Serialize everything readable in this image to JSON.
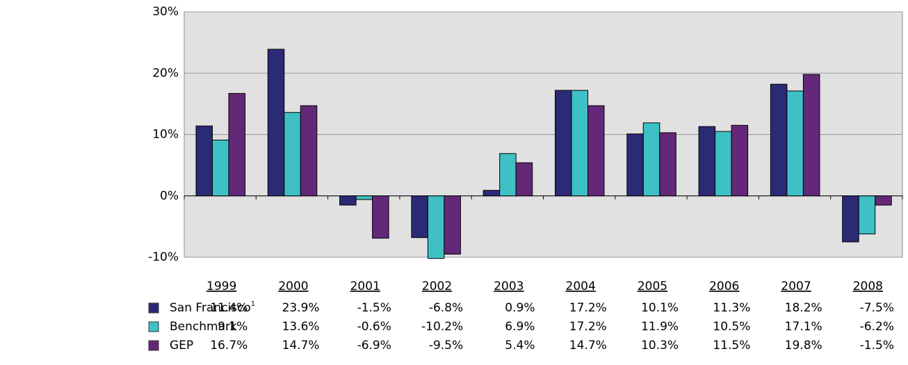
{
  "chart_data": {
    "type": "bar",
    "categories": [
      "1999",
      "2000",
      "2001",
      "2002",
      "2003",
      "2004",
      "2005",
      "2006",
      "2007",
      "2008"
    ],
    "series": [
      {
        "name": "San Francisco",
        "note": "1",
        "color": "#2b2a75",
        "values": [
          11.4,
          23.9,
          -1.5,
          -6.8,
          0.9,
          17.2,
          10.1,
          11.3,
          18.2,
          -7.5
        ],
        "value_labels": [
          "11.4%",
          "23.9%",
          "-1.5%",
          "-6.8%",
          "0.9%",
          "17.2%",
          "10.1%",
          "11.3%",
          "18.2%",
          "-7.5%"
        ]
      },
      {
        "name": "Benchmark",
        "color": "#3fc0c5",
        "values": [
          9.1,
          13.6,
          -0.6,
          -10.2,
          6.9,
          17.2,
          11.9,
          10.5,
          17.1,
          -6.2
        ],
        "value_labels": [
          "9.1%",
          "13.6%",
          "-0.6%",
          "-10.2%",
          "6.9%",
          "17.2%",
          "11.9%",
          "10.5%",
          "17.1%",
          "-6.2%"
        ]
      },
      {
        "name": "GEP",
        "color": "#642878",
        "values": [
          16.7,
          14.7,
          -6.9,
          -9.5,
          5.4,
          14.7,
          10.3,
          11.5,
          19.8,
          -1.5
        ],
        "value_labels": [
          "16.7%",
          "14.7%",
          "-6.9%",
          "-9.5%",
          "5.4%",
          "14.7%",
          "10.3%",
          "11.5%",
          "19.8%",
          "-1.5%"
        ]
      }
    ],
    "ylim": [
      -10,
      30
    ],
    "yticks": [
      {
        "value": -10,
        "label": "-10%"
      },
      {
        "value": 0,
        "label": "0%"
      },
      {
        "value": 10,
        "label": "10%"
      },
      {
        "value": 20,
        "label": "20%"
      },
      {
        "value": 30,
        "label": "30%"
      }
    ],
    "grid": true
  }
}
